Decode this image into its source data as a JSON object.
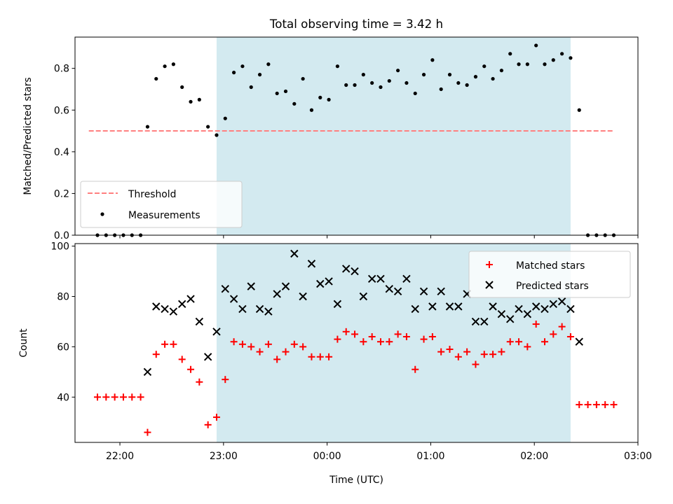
{
  "chart_data": [
    {
      "type": "scatter",
      "title": "Total observing time = 3.42 h",
      "xlabel": "",
      "ylabel": "Matched/Predicted stars",
      "xlim": [
        "21:34",
        "03:00"
      ],
      "ylim": [
        0,
        0.95
      ],
      "yticks": [
        "0.0",
        "0.2",
        "0.4",
        "0.6",
        "0.8"
      ],
      "shaded_span": {
        "start": "22:56",
        "end": "02:21",
        "color": "#d3eaf0"
      },
      "legend_position": "lower-left",
      "threshold": {
        "name": "Threshold",
        "value": 0.5,
        "x_start": "21:42",
        "x_end": "02:46",
        "color": "#ff8080"
      },
      "series": [
        {
          "name": "Measurements",
          "color": "#000000",
          "x": [
            "21:47",
            "21:52",
            "21:57",
            "22:02",
            "22:07",
            "22:12",
            "22:16",
            "22:21",
            "22:26",
            "22:31",
            "22:36",
            "22:41",
            "22:46",
            "22:51",
            "22:56",
            "23:01",
            "23:06",
            "23:11",
            "23:16",
            "23:21",
            "23:26",
            "23:31",
            "23:36",
            "23:41",
            "23:46",
            "23:51",
            "23:56",
            "00:01",
            "00:06",
            "00:11",
            "00:16",
            "00:21",
            "00:26",
            "00:31",
            "00:36",
            "00:41",
            "00:46",
            "00:51",
            "00:56",
            "01:01",
            "01:06",
            "01:11",
            "01:16",
            "01:21",
            "01:26",
            "01:31",
            "01:36",
            "01:41",
            "01:46",
            "01:51",
            "01:56",
            "02:01",
            "02:06",
            "02:11",
            "02:16",
            "02:21",
            "02:26",
            "02:31",
            "02:36",
            "02:41",
            "02:46"
          ],
          "y": [
            0.0,
            0.0,
            0.0,
            0.0,
            0.0,
            0.0,
            0.52,
            0.75,
            0.81,
            0.82,
            0.71,
            0.64,
            0.65,
            0.52,
            0.48,
            0.56,
            0.78,
            0.81,
            0.71,
            0.77,
            0.82,
            0.68,
            0.69,
            0.63,
            0.75,
            0.6,
            0.66,
            0.65,
            0.81,
            0.72,
            0.72,
            0.77,
            0.73,
            0.71,
            0.74,
            0.79,
            0.73,
            0.68,
            0.77,
            0.84,
            0.7,
            0.77,
            0.73,
            0.72,
            0.76,
            0.81,
            0.75,
            0.79,
            0.87,
            0.82,
            0.82,
            0.91,
            0.82,
            0.84,
            0.87,
            0.85,
            0.6,
            0.0,
            0.0,
            0.0,
            0.0
          ]
        }
      ]
    },
    {
      "type": "scatter",
      "title": "",
      "xlabel": "Time (UTC)",
      "ylabel": "Count",
      "xlim": [
        "21:34",
        "03:00"
      ],
      "xticks": [
        "22:00",
        "23:00",
        "00:00",
        "01:00",
        "02:00",
        "03:00"
      ],
      "ylim": [
        22,
        101
      ],
      "yticks": [
        "40",
        "60",
        "80",
        "100"
      ],
      "shaded_span": {
        "start": "22:56",
        "end": "02:21",
        "color": "#d3eaf0"
      },
      "legend_position": "top-right",
      "series": [
        {
          "name": "Matched stars",
          "marker": "+",
          "color": "#ff0000",
          "x": [
            "21:47",
            "21:52",
            "21:57",
            "22:02",
            "22:07",
            "22:12",
            "22:16",
            "22:21",
            "22:26",
            "22:31",
            "22:36",
            "22:41",
            "22:46",
            "22:51",
            "22:56",
            "23:01",
            "23:06",
            "23:11",
            "23:16",
            "23:21",
            "23:26",
            "23:31",
            "23:36",
            "23:41",
            "23:46",
            "23:51",
            "23:56",
            "00:01",
            "00:06",
            "00:11",
            "00:16",
            "00:21",
            "00:26",
            "00:31",
            "00:36",
            "00:41",
            "00:46",
            "00:51",
            "00:56",
            "01:01",
            "01:06",
            "01:11",
            "01:16",
            "01:21",
            "01:26",
            "01:31",
            "01:36",
            "01:41",
            "01:46",
            "01:51",
            "01:56",
            "02:01",
            "02:06",
            "02:11",
            "02:16",
            "02:21",
            "02:26",
            "02:31",
            "02:36",
            "02:41",
            "02:46"
          ],
          "y": [
            40,
            40,
            40,
            40,
            40,
            40,
            26,
            57,
            61,
            61,
            55,
            51,
            46,
            29,
            32,
            47,
            62,
            61,
            60,
            58,
            61,
            55,
            58,
            61,
            60,
            56,
            56,
            56,
            63,
            66,
            65,
            62,
            64,
            62,
            62,
            65,
            64,
            51,
            63,
            64,
            58,
            59,
            56,
            58,
            53,
            57,
            57,
            58,
            62,
            62,
            60,
            69,
            62,
            65,
            68,
            64,
            37,
            37,
            37,
            37,
            37
          ]
        },
        {
          "name": "Predicted stars",
          "marker": "x",
          "color": "#000000",
          "x": [
            "22:16",
            "22:21",
            "22:26",
            "22:31",
            "22:36",
            "22:41",
            "22:46",
            "22:51",
            "22:56",
            "23:01",
            "23:06",
            "23:11",
            "23:16",
            "23:21",
            "23:26",
            "23:31",
            "23:36",
            "23:41",
            "23:46",
            "23:51",
            "23:56",
            "00:01",
            "00:06",
            "00:11",
            "00:16",
            "00:21",
            "00:26",
            "00:31",
            "00:36",
            "00:41",
            "00:46",
            "00:51",
            "00:56",
            "01:01",
            "01:06",
            "01:11",
            "01:16",
            "01:21",
            "01:26",
            "01:31",
            "01:36",
            "01:41",
            "01:46",
            "01:51",
            "01:56",
            "02:01",
            "02:06",
            "02:11",
            "02:16",
            "02:21",
            "02:26"
          ],
          "y": [
            50,
            76,
            75,
            74,
            77,
            79,
            70,
            56,
            66,
            83,
            79,
            75,
            84,
            75,
            74,
            81,
            84,
            97,
            80,
            93,
            85,
            86,
            77,
            91,
            90,
            80,
            87,
            87,
            83,
            82,
            87,
            75,
            82,
            76,
            82,
            76,
            76,
            81,
            70,
            70,
            76,
            73,
            71,
            75,
            73,
            76,
            75,
            77,
            78,
            75,
            62
          ]
        }
      ]
    }
  ]
}
